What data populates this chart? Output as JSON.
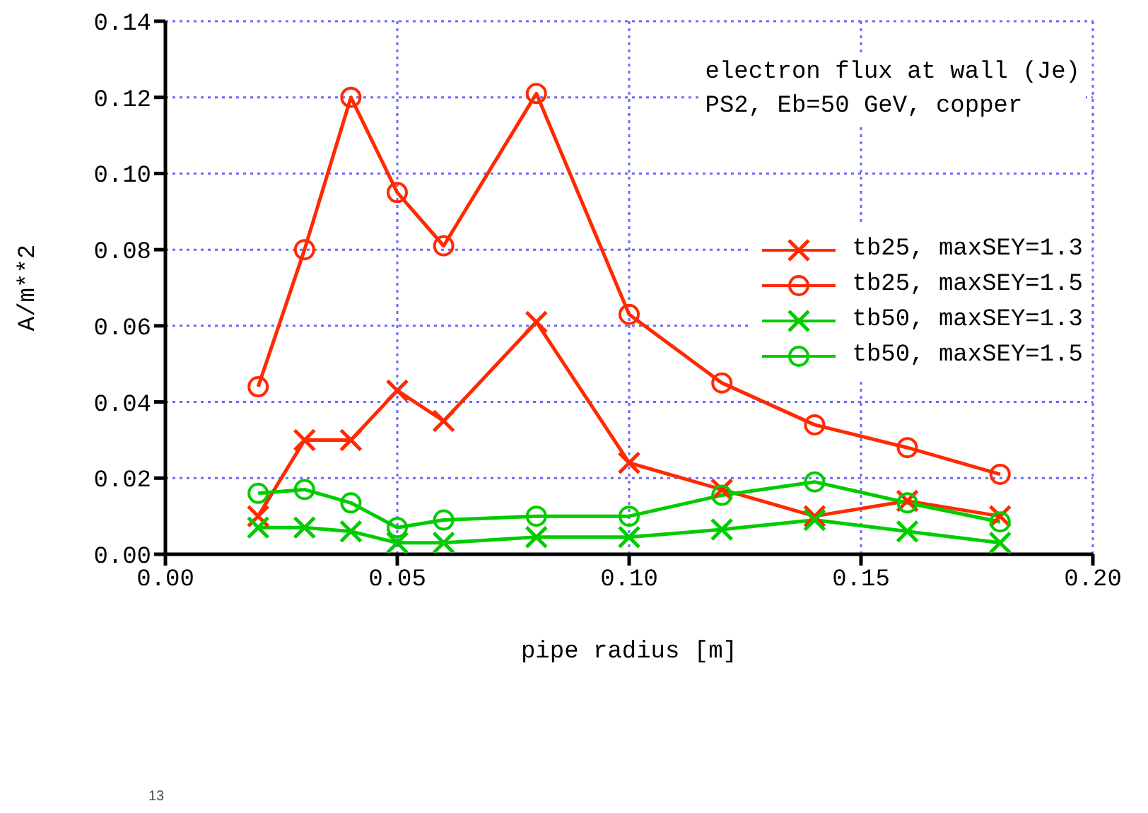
{
  "chart_data": {
    "type": "line",
    "title": "electron flux at wall (Je)",
    "subtitle": "PS2, Eb=50 GeV, copper",
    "xlabel": "pipe radius [m]",
    "ylabel": "A/m**2",
    "x": [
      0.02,
      0.03,
      0.04,
      0.05,
      0.06,
      0.08,
      0.1,
      0.12,
      0.14,
      0.16,
      0.18
    ],
    "series": [
      {
        "name": "tb25, maxSEY=1.3",
        "color": "#ff2a00",
        "marker": "cross",
        "values": [
          0.01,
          0.03,
          0.03,
          0.043,
          0.035,
          0.061,
          0.024,
          0.017,
          0.01,
          0.014,
          0.01
        ]
      },
      {
        "name": "tb25, maxSEY=1.5",
        "color": "#ff2a00",
        "marker": "circle",
        "values": [
          0.044,
          0.08,
          0.12,
          0.095,
          0.081,
          0.121,
          0.063,
          0.045,
          0.034,
          0.028,
          0.021
        ]
      },
      {
        "name": "tb50, maxSEY=1.3",
        "color": "#00cc00",
        "marker": "cross",
        "values": [
          0.007,
          0.007,
          0.006,
          0.003,
          0.003,
          0.0045,
          0.0045,
          0.0065,
          0.009,
          0.006,
          0.003
        ]
      },
      {
        "name": "tb50, maxSEY=1.5",
        "color": "#00cc00",
        "marker": "circle",
        "values": [
          0.016,
          0.017,
          0.0135,
          0.007,
          0.009,
          0.01,
          0.01,
          0.0155,
          0.019,
          0.0135,
          0.0085
        ]
      }
    ],
    "xlim": [
      0,
      0.2
    ],
    "xticks": [
      {
        "value": 0,
        "label": "0.00"
      },
      {
        "value": 0.05,
        "label": "0.05"
      },
      {
        "value": 0.1,
        "label": "0.10"
      },
      {
        "value": 0.15,
        "label": "0.15"
      },
      {
        "value": 0.2,
        "label": "0.20"
      }
    ],
    "ylim": [
      0,
      0.14
    ],
    "yticks": [
      {
        "value": 0,
        "label": "0.00"
      },
      {
        "value": 0.02,
        "label": "0.02"
      },
      {
        "value": 0.04,
        "label": "0.04"
      },
      {
        "value": 0.06,
        "label": "0.06"
      },
      {
        "value": 0.08,
        "label": "0.08"
      },
      {
        "value": 0.1,
        "label": "0.10"
      },
      {
        "value": 0.12,
        "label": "0.12"
      },
      {
        "value": 0.14,
        "label": "0.14"
      }
    ],
    "grid": true,
    "legend": "right",
    "line_style": "solid",
    "annotations": [
      "13"
    ]
  }
}
